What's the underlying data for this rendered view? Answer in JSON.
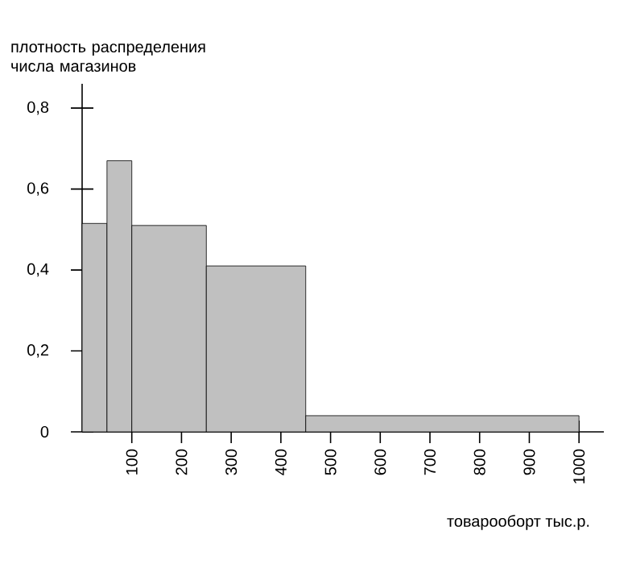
{
  "chart_data": {
    "type": "histogram",
    "ylabel": "плотность распределения числа магазинов",
    "xlabel": "товарооборт тыс.р.",
    "bins": [
      0,
      50,
      100,
      250,
      450,
      1000
    ],
    "values": [
      0.515,
      0.67,
      0.51,
      0.41,
      0.04
    ],
    "color": "#c0c0c0",
    "xlim": [
      0,
      1050
    ],
    "ylim": [
      0,
      0.86
    ],
    "xticks": [
      100,
      200,
      300,
      400,
      500,
      600,
      700,
      800,
      900,
      1000
    ],
    "yticks": [
      0,
      {
        "value": 0.2,
        "label": "0,2"
      },
      {
        "value": 0.4,
        "label": "0,4"
      },
      {
        "value": 0.6,
        "label": "0,6"
      },
      {
        "value": 0.8,
        "label": "0,8"
      }
    ],
    "grid": false
  }
}
